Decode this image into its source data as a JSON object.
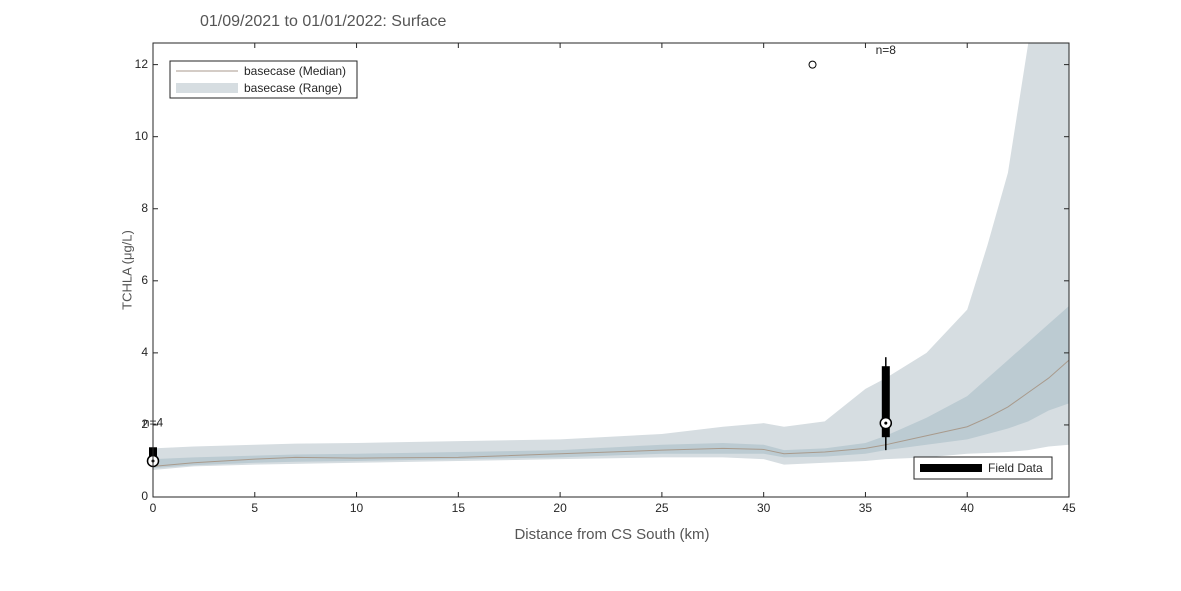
{
  "chart_data": {
    "type": "band-line-box",
    "title": "01/09/2021 to 01/01/2022: Surface",
    "x_label": "Distance from CS South (km)",
    "y_label": "TCHLA (μg/L)",
    "xlim": [
      0,
      45
    ],
    "ylim": [
      0,
      12.6
    ],
    "xticks": [
      0,
      5,
      10,
      15,
      20,
      25,
      30,
      35,
      40,
      45
    ],
    "yticks": [
      0,
      2,
      4,
      6,
      8,
      10,
      12
    ],
    "x": [
      0,
      2,
      5,
      7,
      10,
      15,
      20,
      25,
      28,
      30,
      31,
      33,
      35,
      36,
      38,
      40,
      41,
      42,
      43,
      44,
      45
    ],
    "series": [
      {
        "name": "basecase (Median)",
        "color": "#a89a8c",
        "values": [
          0.85,
          0.95,
          1.05,
          1.1,
          1.08,
          1.1,
          1.2,
          1.3,
          1.35,
          1.32,
          1.2,
          1.25,
          1.35,
          1.45,
          1.7,
          1.95,
          2.2,
          2.5,
          2.9,
          3.3,
          3.8
        ]
      },
      {
        "name": "basecase (Range)",
        "color": "#d6dde1",
        "low": [
          0.75,
          0.85,
          0.9,
          0.92,
          0.95,
          1.0,
          1.05,
          1.1,
          1.1,
          1.05,
          0.9,
          0.95,
          1.0,
          1.05,
          1.1,
          1.2,
          1.22,
          1.25,
          1.3,
          1.4,
          1.45
        ],
        "high": [
          1.35,
          1.4,
          1.45,
          1.48,
          1.5,
          1.55,
          1.6,
          1.75,
          1.95,
          2.05,
          1.95,
          2.1,
          3.0,
          3.3,
          4.0,
          5.2,
          7.0,
          9.0,
          12.6,
          12.6,
          12.6
        ],
        "inner_color": "#bccbd2",
        "inner_low": [
          0.8,
          0.88,
          0.95,
          0.98,
          1.0,
          1.05,
          1.1,
          1.2,
          1.2,
          1.2,
          1.1,
          1.12,
          1.2,
          1.3,
          1.45,
          1.6,
          1.75,
          1.9,
          2.1,
          2.4,
          2.6
        ],
        "inner_high": [
          1.05,
          1.1,
          1.15,
          1.18,
          1.2,
          1.25,
          1.3,
          1.45,
          1.5,
          1.45,
          1.3,
          1.35,
          1.5,
          1.7,
          2.2,
          2.8,
          3.3,
          3.8,
          4.3,
          4.8,
          5.3
        ]
      }
    ],
    "field_data": {
      "name": "Field Data",
      "color": "#000000",
      "boxes": [
        {
          "x": 0,
          "q1": 0.95,
          "q3": 1.38,
          "median": 1.0,
          "n_label": "n=4"
        },
        {
          "x": 36,
          "q1": 1.66,
          "q3": 3.63,
          "median": 2.05,
          "whisker_low": 1.3,
          "whisker_high": 3.88,
          "n_label": "n=8"
        }
      ],
      "outliers": [
        {
          "x": 32.4,
          "y": 12
        }
      ]
    }
  }
}
